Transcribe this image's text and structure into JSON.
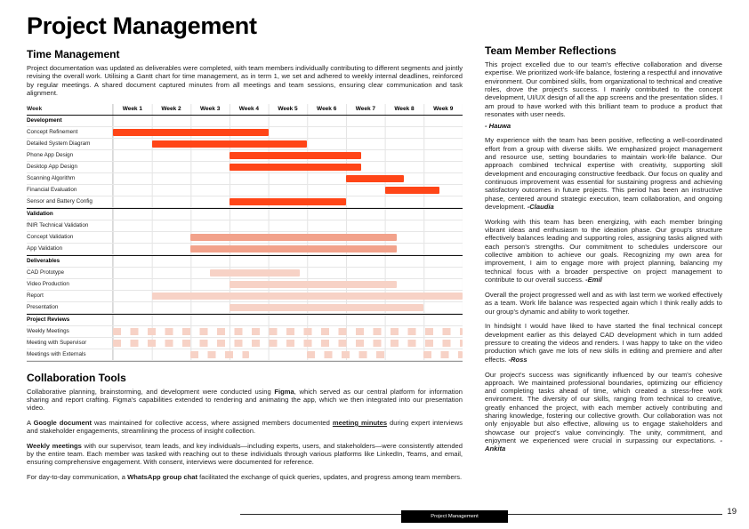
{
  "page": {
    "title": "Project Management",
    "footer_label": "Project Management",
    "page_number": "19"
  },
  "time_management": {
    "heading": "Time Management",
    "body": "Project documentation was updated as deliverables were completed, with team members individually contributing to different segments and jointly revising the overall work. Utilising a Gantt chart for time management, as in term 1, we set and adhered to weekly internal deadlines, reinforced by regular meetings. A shared document captured minutes from all meetings and team sessions, ensuring clear communication and task alignment."
  },
  "gantt": {
    "header": [
      "Week",
      "Week 1",
      "Week 2",
      "Week 3",
      "Week 4",
      "Week 5",
      "Week 6",
      "Week 7",
      "Week 8",
      "Week 9"
    ],
    "weeks": 9,
    "colors": {
      "bright": "#ff4517",
      "medium": "#f2a28b",
      "light": "#f7d2c6"
    },
    "rows": [
      {
        "label": "Development",
        "section": true
      },
      {
        "label": "Concept Refinement",
        "bars": [
          {
            "start": 0,
            "end": 4,
            "style": "bright"
          }
        ]
      },
      {
        "label": "Detailed System Diagram",
        "bars": [
          {
            "start": 1,
            "end": 5,
            "style": "bright"
          }
        ]
      },
      {
        "label": "Phone App Design",
        "bars": [
          {
            "start": 3,
            "end": 6.4,
            "style": "bright"
          }
        ]
      },
      {
        "label": "Desktop App Design",
        "bars": [
          {
            "start": 3,
            "end": 6.4,
            "style": "bright"
          }
        ]
      },
      {
        "label": "Scanning Algorithm",
        "bars": [
          {
            "start": 6,
            "end": 7.5,
            "style": "bright"
          }
        ]
      },
      {
        "label": "Financial Evaluation",
        "bars": [
          {
            "start": 7,
            "end": 8.4,
            "style": "bright"
          }
        ]
      },
      {
        "label": "Sensor and Battery Config",
        "bars": [
          {
            "start": 3,
            "end": 6,
            "style": "bright"
          }
        ]
      },
      {
        "label": "Validation",
        "section": true
      },
      {
        "label": "fNIR Technical Validation",
        "bars": []
      },
      {
        "label": "Concept Validation",
        "bars": [
          {
            "start": 2,
            "end": 7.3,
            "style": "medium"
          }
        ]
      },
      {
        "label": "App Validation",
        "bars": [
          {
            "start": 2,
            "end": 7.3,
            "style": "medium"
          }
        ]
      },
      {
        "label": "Deliverables",
        "section": true
      },
      {
        "label": "CAD Prototype",
        "bars": [
          {
            "start": 2.5,
            "end": 4.8,
            "style": "light"
          }
        ]
      },
      {
        "label": "Video Production",
        "bars": [
          {
            "start": 3,
            "end": 7.3,
            "style": "light"
          }
        ]
      },
      {
        "label": "Report",
        "bars": [
          {
            "start": 1,
            "end": 9,
            "style": "light"
          }
        ]
      },
      {
        "label": "Presentation",
        "bars": [
          {
            "start": 3,
            "end": 8,
            "style": "light"
          }
        ]
      },
      {
        "label": "Project Reviews",
        "section": true
      },
      {
        "label": "Weekly Meetings",
        "bars": [
          {
            "start": 0,
            "end": 9,
            "style": "light",
            "dashed": true
          }
        ]
      },
      {
        "label": "Meeting with Supervisor",
        "bars": [
          {
            "start": 0,
            "end": 9,
            "style": "light",
            "dashed": true
          }
        ]
      },
      {
        "label": "Meetings with Externals",
        "bars": [
          {
            "start": 2,
            "end": 3.5,
            "style": "light",
            "dashed": true
          },
          {
            "start": 5,
            "end": 7,
            "style": "light",
            "dashed": true
          },
          {
            "start": 8,
            "end": 9,
            "style": "light",
            "dashed": true
          }
        ]
      }
    ]
  },
  "collaboration": {
    "heading": "Collaboration Tools",
    "paragraphs": [
      [
        {
          "t": "Collaborative planning, brainstorming, and development were conducted using "
        },
        {
          "t": "Figma",
          "b": true
        },
        {
          "t": ", which served as our central platform for information sharing and report crafting. Figma's capabilities extended to rendering and animating the app, which we then integrated into our presentation video."
        }
      ],
      [
        {
          "t": "A "
        },
        {
          "t": "Google document",
          "b": true
        },
        {
          "t": " was maintained for collective access, where assigned members documented "
        },
        {
          "t": "meeting minutes",
          "b": true,
          "u": true
        },
        {
          "t": " during expert interviews and stakeholder engagements, streamlining the process of insight collection."
        }
      ],
      [
        {
          "t": "Weekly meetings",
          "b": true
        },
        {
          "t": " with our supervisor, team leads, and key individuals—including experts, users, and stakeholders—were consistently attended by the entire team. Each member was tasked with reaching out to these individuals through various platforms like LinkedIn, Teams, and email, ensuring comprehensive engagement. With consent, interviews were documented for reference."
        }
      ],
      [
        {
          "t": "For day-to-day communication, a "
        },
        {
          "t": "WhatsApp group chat",
          "b": true
        },
        {
          "t": " facilitated the exchange of quick queries, updates, and progress among team members."
        }
      ]
    ]
  },
  "reflections": {
    "heading": "Team Member Reflections",
    "items": [
      {
        "text": "This project excelled due to our team's effective collaboration and diverse expertise. We prioritized work-life balance, fostering a respectful and innovative environment. Our combined skills, from organizational to technical and creative roles, drove the project's success. I mainly contributed to the concept development, UI/UX design of all the app screens and the presentation slides. I am proud to have worked with this brilliant team to produce a product that resonates with user needs.",
        "author": "- Hauwa"
      },
      {
        "text": "My experience with the team has been positive, reflecting a well-coordinated effort from a group with diverse skills. We emphasized project management and resource use, setting boundaries to maintain work-life balance. Our approach combined technical expertise with creativity, supporting skill development and encouraging constructive feedback. Our focus on quality and continuous improvement was essential for sustaining progress and achieving satisfactory outcomes in future projects. This period has been an instructive phase, centered around strategic execution, team collaboration, and ongoing development.",
        "author": "-Claudia"
      },
      {
        "text": "Working with this team has been energizing, with each member bringing vibrant ideas and enthusiasm to the ideation phase. Our group's structure effectively balances leading and supporting roles, assigning tasks aligned with each person's strengths. Our commitment to schedules underscore our collective ambition to achieve our goals. Recognizing my own area for improvement, I aim to engage more with project planning, balancing my technical focus with a broader perspective on project management to contribute to our overall success.",
        "author": "-Emil"
      },
      {
        "text": "Overall the project progressed well and as with last term we worked effectively as a team. Work life balance was respected again which I think really adds to our group's dynamic and ability to work together.",
        "author": ""
      },
      {
        "text": "In hindsight I would have liked to have started the final technical concept development earlier as this delayed CAD development which in turn added pressure to creating the videos and renders. I was happy to take on the video production which gave me lots of new skills in editing and premiere and after effects.",
        "author": "-Ross"
      },
      {
        "text": "Our project's success was significantly influenced by our team's cohesive approach. We maintained professional boundaries, optimizing our efficiency and completing tasks ahead of time, which created a stress-free work environment. The diversity of our skills, ranging from technical to creative, greatly enhanced the project, with each member actively contributing and sharing knowledge, fostering our collective growth. Our collaboration was not only enjoyable but also effective, allowing us to engage stakeholders and showcase our project's value convincingly. The unity, commitment, and enjoyment we experienced were crucial in surpassing our expectations.",
        "author": "-Ankita"
      }
    ]
  }
}
